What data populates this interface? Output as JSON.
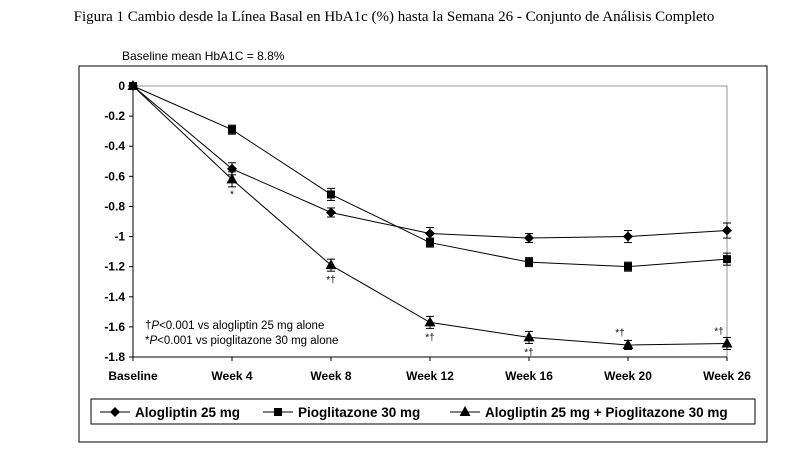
{
  "figure_title": "Figura 1 Cambio desde la Línea Basal en HbA1c (%) hasta la Semana 26 - Conjunto de Análisis Completo",
  "chart_data": {
    "type": "line",
    "subtitle": "Baseline mean HbA1C = 8.8%",
    "xlabel": "",
    "ylabel": "",
    "categories": [
      "Baseline",
      "Week 4",
      "Week 8",
      "Week 12",
      "Week 16",
      "Week 20",
      "Week 26"
    ],
    "ylim": [
      -1.8,
      0
    ],
    "yticks": [
      "0",
      "-0.2",
      "-0.4",
      "-0.6",
      "-0.8",
      "-1",
      "-1.2",
      "-1.4",
      "-1.6",
      "-1.8"
    ],
    "grid": false,
    "legend_position": "bottom",
    "series": [
      {
        "name": "Alogliptin 25 mg",
        "marker": "diamond",
        "values": [
          0,
          -0.55,
          -0.84,
          -0.98,
          -1.01,
          -1.0,
          -0.96
        ],
        "error": [
          0,
          0.04,
          0.03,
          0.04,
          0.03,
          0.04,
          0.05
        ]
      },
      {
        "name": "Pioglitazone 30 mg",
        "marker": "square",
        "values": [
          0,
          -0.29,
          -0.72,
          -1.04,
          -1.17,
          -1.2,
          -1.15
        ],
        "error": [
          0,
          0.03,
          0.04,
          0.03,
          0.03,
          0.03,
          0.04
        ]
      },
      {
        "name": "Alogliptin 25 mg + Pioglitazone 30 mg",
        "marker": "triangle",
        "values": [
          0,
          -0.62,
          -1.19,
          -1.57,
          -1.67,
          -1.72,
          -1.71
        ],
        "error": [
          0,
          0.05,
          0.04,
          0.04,
          0.04,
          0.03,
          0.04
        ]
      }
    ],
    "significance_marks": [
      {
        "category": "Week 4",
        "text": "*"
      },
      {
        "category": "Week 8",
        "text": "*†"
      },
      {
        "category": "Week 12",
        "text": "*†"
      },
      {
        "category": "Week 16",
        "text": "*†"
      },
      {
        "category": "Week 20",
        "text": "*†"
      },
      {
        "category": "Week 26",
        "text": "*†"
      }
    ],
    "annotations": [
      "†P<0.001 vs alogliptin 25 mg alone",
      "*P<0.001 vs pioglitazone 30 mg alone"
    ]
  }
}
